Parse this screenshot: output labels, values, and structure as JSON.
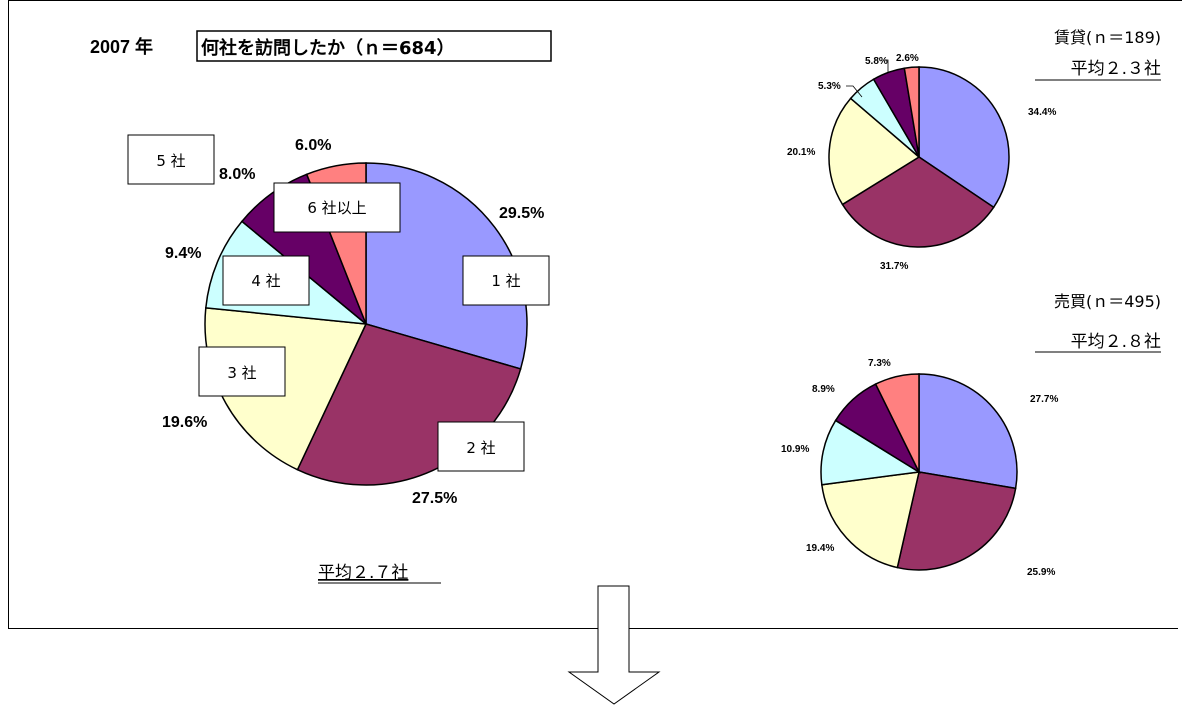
{
  "header": {
    "year": "2007 年",
    "title": "何社を訪問したか（ｎ＝684）"
  },
  "colors": {
    "c1": "#9999FF",
    "c2": "#993366",
    "c3": "#FFFFCC",
    "c4": "#CCFFFF",
    "c5": "#660066",
    "c6": "#FF8080"
  },
  "chart_data": [
    {
      "type": "pie",
      "title": "何社を訪問したか（ｎ＝684）",
      "categories": [
        "1 社",
        "2 社",
        "3 社",
        "4 社",
        "5 社",
        "6 社以上"
      ],
      "values": [
        29.5,
        27.5,
        19.6,
        9.4,
        8.0,
        6.0
      ],
      "value_labels": [
        "29.5%",
        "27.5%",
        "19.6%",
        "9.4%",
        "8.0%",
        "6.0%"
      ],
      "average": "平均２.７社"
    },
    {
      "type": "pie",
      "title": "賃貸(ｎ＝189)",
      "categories": [
        "1 社",
        "2 社",
        "3 社",
        "4 社",
        "5 社",
        "6 社以上"
      ],
      "values": [
        34.4,
        31.7,
        20.1,
        5.3,
        5.8,
        2.6
      ],
      "value_labels": [
        "34.4%",
        "31.7%",
        "20.1%",
        "5.3%",
        "5.8%",
        "2.6%"
      ],
      "average": "平均２.３社"
    },
    {
      "type": "pie",
      "title": "売買(ｎ＝495)",
      "categories": [
        "1 社",
        "2 社",
        "3 社",
        "4 社",
        "5 社",
        "6 社以上"
      ],
      "values": [
        27.7,
        25.9,
        19.4,
        10.9,
        8.9,
        7.3
      ],
      "value_labels": [
        "27.7%",
        "25.9%",
        "19.4%",
        "10.9%",
        "8.9%",
        "7.3%"
      ],
      "average": "平均２.８社"
    }
  ]
}
